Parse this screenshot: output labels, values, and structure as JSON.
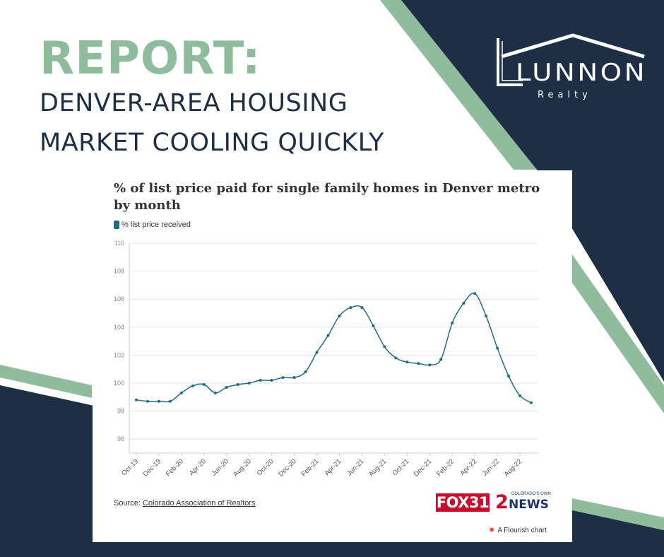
{
  "headline": {
    "report": "REPORT:",
    "line1": "DENVER-AREA HOUSING",
    "line2": "MARKET COOLING QUICKLY"
  },
  "logo": {
    "name": "LUNNON",
    "tagline": "Realty"
  },
  "colors": {
    "navy": "#1d2e45",
    "sage": "#8fbc9d",
    "line": "#1f6b8a"
  },
  "chart_data": {
    "type": "line",
    "title": "% of list price paid for single family homes in Denver metro by month",
    "legend": "% list price received",
    "legend_position": "top-left",
    "xlabel": "",
    "ylabel": "",
    "ylim": [
      95,
      110
    ],
    "yticks": [
      96,
      98,
      100,
      102,
      104,
      106,
      108,
      110
    ],
    "grid": true,
    "x": [
      "Oct-19",
      "Nov-19",
      "Dec-19",
      "Jan-20",
      "Feb-20",
      "Mar-20",
      "Apr-20",
      "May-20",
      "Jun-20",
      "Jul-20",
      "Aug-20",
      "Sep-20",
      "Oct-20",
      "Nov-20",
      "Dec-20",
      "Jan-21",
      "Feb-21",
      "Mar-21",
      "Apr-21",
      "May-21",
      "Jun-21",
      "Jul-21",
      "Aug-21",
      "Sep-21",
      "Oct-21",
      "Nov-21",
      "Dec-21",
      "Jan-22",
      "Feb-22",
      "Mar-22",
      "Apr-22",
      "May-22",
      "Jun-22",
      "Jul-22",
      "Aug-22",
      "Sep-22"
    ],
    "x_tick_labels": [
      "Oct-19",
      "Dec-19",
      "Feb-20",
      "Apr-20",
      "Jun-20",
      "Aug-20",
      "Oct-20",
      "Dec-20",
      "Feb-21",
      "Apr-21",
      "Jun-21",
      "Aug-21",
      "Oct-21",
      "Dec-21",
      "Feb-22",
      "Apr-22",
      "Jun-22",
      "Aug-22"
    ],
    "series": [
      {
        "name": "% list price received",
        "values": [
          98.8,
          98.7,
          98.7,
          98.7,
          99.3,
          99.8,
          99.9,
          99.3,
          99.7,
          99.9,
          100.0,
          100.2,
          100.2,
          100.4,
          100.4,
          100.8,
          102.2,
          103.4,
          104.8,
          105.4,
          105.4,
          104.1,
          102.6,
          101.8,
          101.5,
          101.4,
          101.3,
          101.7,
          104.3,
          105.7,
          106.4,
          104.8,
          102.5,
          100.5,
          99.1,
          98.6
        ]
      }
    ]
  },
  "footer": {
    "source_label": "Source:",
    "source_link": "Colorado Association of Realtors",
    "flourish": "A Flourish chart",
    "fox_logo": "FOX31",
    "news_logo_num": "2",
    "news_logo_word": "NEWS",
    "news_logo_tag": "COLORADO'S OWN"
  }
}
